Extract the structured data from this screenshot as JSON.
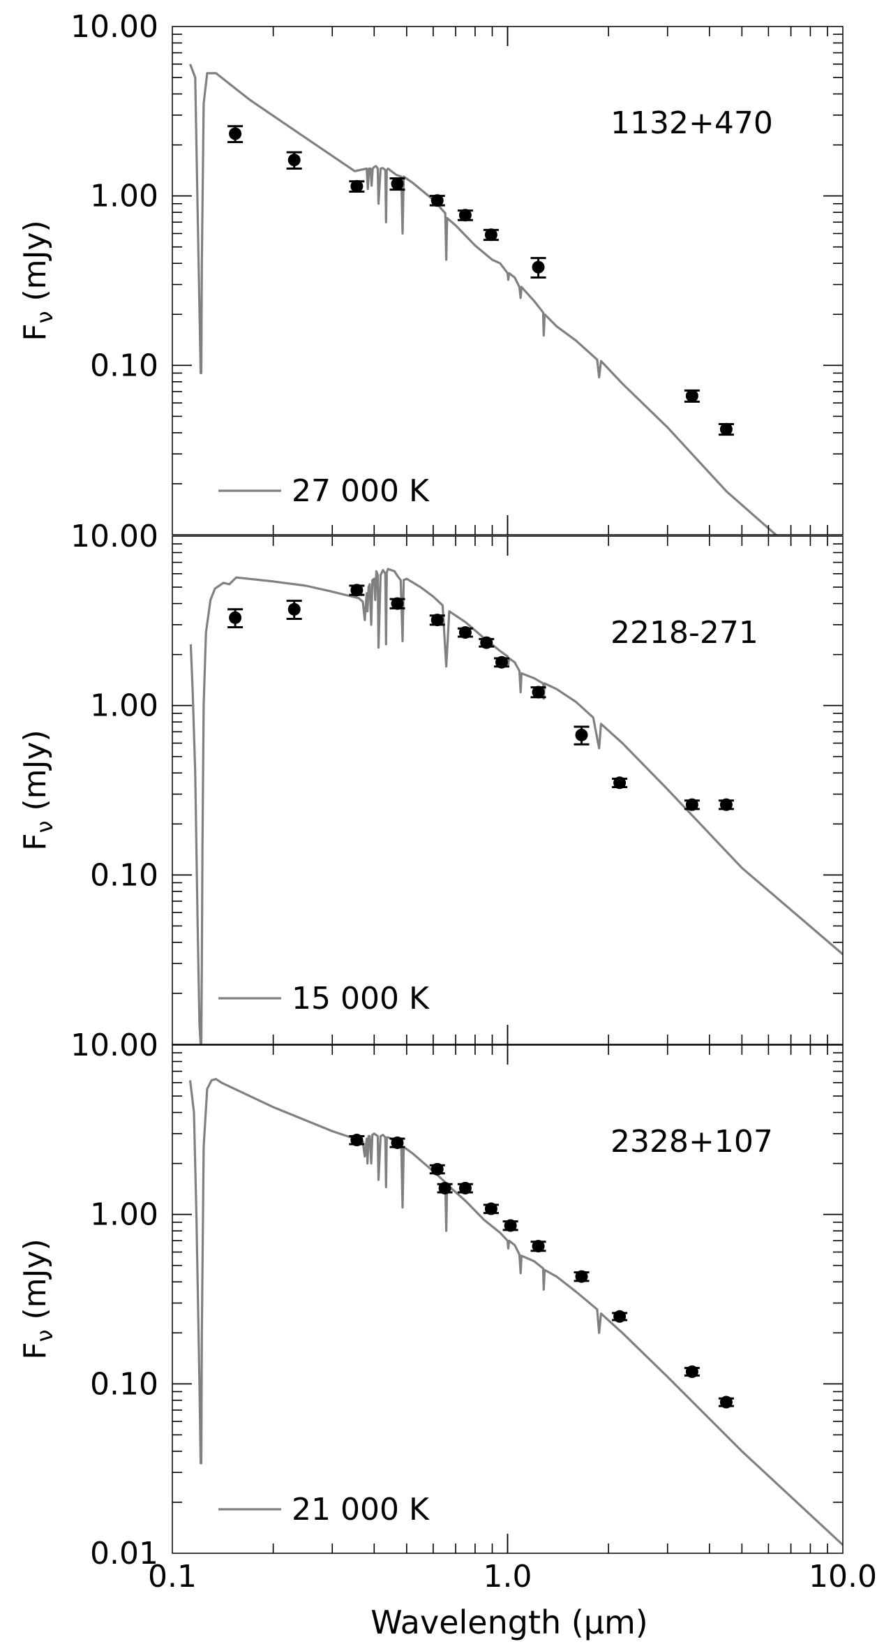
{
  "figure": {
    "xlabel": "Wavelength (μm)",
    "ylabel_main": "F",
    "ylabel_sub": "ν",
    "ylabel_unit": "(mJy)",
    "x_tick_labels": [
      "0.1",
      "1.0",
      "10.0"
    ]
  },
  "colors": {
    "model": "#808080",
    "points": "#000000"
  },
  "chart_data": [
    {
      "type": "line",
      "label": "1132+470",
      "xlabel": "",
      "ylabel": "Fν (mJy)",
      "xscale": "log",
      "yscale": "log",
      "xlim": [
        0.1,
        10.0
      ],
      "ylim": [
        0.01,
        10.0
      ],
      "y_tick_labels": [
        "10.00",
        "1.00",
        "0.10"
      ],
      "legend_label": "27 000 K",
      "model_curve": {
        "name": "27 000 K",
        "x": [
          0.113,
          0.117,
          0.119,
          0.1215,
          0.122,
          0.1225,
          0.124,
          0.127,
          0.135,
          0.17,
          0.25,
          0.35,
          0.38,
          0.383,
          0.386,
          0.39,
          0.393,
          0.396,
          0.4,
          0.405,
          0.41,
          0.412,
          0.418,
          0.425,
          0.432,
          0.434,
          0.436,
          0.44,
          0.45,
          0.466,
          0.482,
          0.4861,
          0.49,
          0.52,
          0.6,
          0.652,
          0.6563,
          0.66,
          0.7,
          0.8,
          0.9,
          0.95,
          1.0,
          1.005,
          1.01,
          1.05,
          1.085,
          1.094,
          1.1,
          1.2,
          1.277,
          1.282,
          1.29,
          1.4,
          1.6,
          1.85,
          1.875,
          1.9,
          2.2,
          3.0,
          4.5,
          6.5
        ],
        "y": [
          6.0,
          5.0,
          0.8,
          0.09,
          0.09,
          0.4,
          3.5,
          5.3,
          5.3,
          3.7,
          2.2,
          1.4,
          1.45,
          1.1,
          1.45,
          1.45,
          1.15,
          1.45,
          1.48,
          1.5,
          1.45,
          0.9,
          1.45,
          1.46,
          1.42,
          0.7,
          1.42,
          1.45,
          1.4,
          1.33,
          1.3,
          0.6,
          1.3,
          1.2,
          0.95,
          0.79,
          0.42,
          0.74,
          0.67,
          0.51,
          0.42,
          0.4,
          0.35,
          0.32,
          0.35,
          0.33,
          0.29,
          0.25,
          0.29,
          0.24,
          0.205,
          0.15,
          0.2,
          0.17,
          0.14,
          0.108,
          0.085,
          0.106,
          0.078,
          0.043,
          0.018,
          0.0095
        ]
      },
      "photometry": {
        "x": [
          0.154,
          0.231,
          0.355,
          0.469,
          0.617,
          0.748,
          0.893,
          1.235,
          3.55,
          4.49
        ],
        "y": [
          2.33,
          1.63,
          1.14,
          1.18,
          0.94,
          0.77,
          0.59,
          0.38,
          0.066,
          0.042
        ],
        "yerr_low": [
          0.25,
          0.18,
          0.08,
          0.09,
          0.06,
          0.05,
          0.04,
          0.05,
          0.005,
          0.003
        ],
        "yerr_high": [
          0.25,
          0.18,
          0.08,
          0.09,
          0.06,
          0.05,
          0.04,
          0.05,
          0.005,
          0.003
        ]
      }
    },
    {
      "type": "line",
      "label": "2218-271",
      "xlabel": "",
      "ylabel": "Fν (mJy)",
      "xscale": "log",
      "yscale": "log",
      "xlim": [
        0.1,
        10.0
      ],
      "ylim": [
        0.01,
        10.0
      ],
      "y_tick_labels": [
        "10.00",
        "1.00",
        "0.10"
      ],
      "legend_label": "15 000 K",
      "model_curve": {
        "name": "15 000 K",
        "x": [
          0.1135,
          0.115,
          0.117,
          0.119,
          0.1205,
          0.1215,
          0.122,
          0.1225,
          0.123,
          0.124,
          0.126,
          0.13,
          0.134,
          0.138,
          0.142,
          0.148,
          0.155,
          0.2,
          0.25,
          0.3,
          0.36,
          0.37,
          0.375,
          0.38,
          0.382,
          0.385,
          0.388,
          0.392,
          0.395,
          0.4,
          0.403,
          0.406,
          0.41,
          0.412,
          0.418,
          0.425,
          0.432,
          0.434,
          0.436,
          0.44,
          0.45,
          0.46,
          0.47,
          0.48,
          0.4861,
          0.49,
          0.5,
          0.55,
          0.6,
          0.64,
          0.6563,
          0.67,
          0.75,
          0.85,
          0.95,
          1.0,
          1.005,
          1.01,
          1.05,
          1.085,
          1.094,
          1.1,
          1.2,
          1.277,
          1.282,
          1.29,
          1.4,
          1.6,
          1.8,
          1.875,
          1.9,
          2.2,
          3.0,
          5.0,
          10.0
        ],
        "y": [
          2.3,
          1.2,
          0.4,
          0.05,
          0.013,
          0.01,
          0.01,
          0.03,
          0.15,
          1.0,
          2.7,
          4.2,
          4.9,
          5.1,
          5.3,
          5.2,
          5.7,
          5.4,
          5.1,
          4.7,
          4.3,
          4.1,
          3.2,
          4.6,
          3.6,
          5.0,
          5.2,
          3.0,
          5.5,
          5.6,
          4.2,
          6.2,
          5.9,
          2.2,
          5.9,
          6.3,
          6.0,
          2.3,
          6.1,
          6.4,
          6.3,
          6.2,
          5.8,
          5.5,
          2.4,
          5.5,
          5.6,
          5.0,
          4.4,
          3.9,
          1.7,
          3.6,
          3.1,
          2.5,
          2.1,
          1.95,
          1.75,
          1.9,
          1.8,
          1.6,
          1.2,
          1.55,
          1.45,
          1.35,
          1.1,
          1.35,
          1.25,
          1.05,
          0.85,
          0.56,
          0.78,
          0.6,
          0.32,
          0.11,
          0.034
        ]
      },
      "photometry": {
        "x": [
          0.154,
          0.231,
          0.355,
          0.469,
          0.617,
          0.748,
          0.865,
          0.96,
          1.235,
          1.662,
          2.159,
          3.55,
          4.49
        ],
        "y": [
          3.3,
          3.7,
          4.8,
          4.0,
          3.2,
          2.7,
          2.35,
          1.8,
          1.2,
          0.67,
          0.35,
          0.26,
          0.26
        ],
        "yerr_low": [
          0.4,
          0.45,
          0.3,
          0.25,
          0.2,
          0.15,
          0.12,
          0.1,
          0.08,
          0.08,
          0.02,
          0.015,
          0.015
        ],
        "yerr_high": [
          0.4,
          0.45,
          0.3,
          0.25,
          0.2,
          0.15,
          0.12,
          0.1,
          0.08,
          0.08,
          0.02,
          0.015,
          0.015
        ]
      }
    },
    {
      "type": "line",
      "label": "2328+107",
      "xlabel": "Wavelength (μm)",
      "ylabel": "Fν (mJy)",
      "xscale": "log",
      "yscale": "log",
      "xlim": [
        0.1,
        10.0
      ],
      "ylim": [
        0.01,
        10.0
      ],
      "y_tick_labels": [
        "10.00",
        "1.00",
        "0.10",
        "0.01"
      ],
      "legend_label": "21 000 K",
      "model_curve": {
        "name": "21 000 K",
        "x": [
          0.113,
          0.116,
          0.118,
          0.1205,
          0.1215,
          0.122,
          0.1225,
          0.124,
          0.127,
          0.131,
          0.135,
          0.14,
          0.2,
          0.3,
          0.37,
          0.375,
          0.38,
          0.382,
          0.385,
          0.388,
          0.392,
          0.395,
          0.4,
          0.405,
          0.41,
          0.412,
          0.418,
          0.425,
          0.432,
          0.434,
          0.436,
          0.44,
          0.45,
          0.47,
          0.482,
          0.4861,
          0.49,
          0.52,
          0.6,
          0.652,
          0.6563,
          0.66,
          0.75,
          0.85,
          0.95,
          1.0,
          1.005,
          1.01,
          1.05,
          1.085,
          1.094,
          1.1,
          1.2,
          1.277,
          1.282,
          1.29,
          1.4,
          1.6,
          1.85,
          1.875,
          1.9,
          2.2,
          3.0,
          5.0,
          10.0
        ],
        "y": [
          6.2,
          4.0,
          1.0,
          0.1,
          0.034,
          0.034,
          0.2,
          2.5,
          5.5,
          6.2,
          6.3,
          6.0,
          4.3,
          3.1,
          2.7,
          2.2,
          2.8,
          2.0,
          2.9,
          2.9,
          2.0,
          2.95,
          3.0,
          2.95,
          2.9,
          1.6,
          2.9,
          2.95,
          2.85,
          1.45,
          2.85,
          2.85,
          2.8,
          2.6,
          2.5,
          1.1,
          2.5,
          2.3,
          1.8,
          1.55,
          0.8,
          1.5,
          1.2,
          0.93,
          0.78,
          0.7,
          0.63,
          0.7,
          0.66,
          0.58,
          0.45,
          0.57,
          0.53,
          0.48,
          0.36,
          0.47,
          0.43,
          0.35,
          0.275,
          0.2,
          0.26,
          0.2,
          0.11,
          0.04,
          0.0112
        ]
      },
      "photometry": {
        "x": [
          0.355,
          0.469,
          0.617,
          0.65,
          0.748,
          0.893,
          1.02,
          1.235,
          1.662,
          2.159,
          3.55,
          4.49
        ],
        "y": [
          2.75,
          2.65,
          1.85,
          1.43,
          1.43,
          1.08,
          0.86,
          0.65,
          0.43,
          0.25,
          0.118,
          0.078
        ],
        "yerr_low": [
          0.15,
          0.15,
          0.1,
          0.08,
          0.08,
          0.06,
          0.05,
          0.04,
          0.025,
          0.012,
          0.006,
          0.004
        ],
        "yerr_high": [
          0.15,
          0.15,
          0.1,
          0.08,
          0.08,
          0.06,
          0.05,
          0.04,
          0.025,
          0.012,
          0.006,
          0.004
        ]
      }
    }
  ]
}
